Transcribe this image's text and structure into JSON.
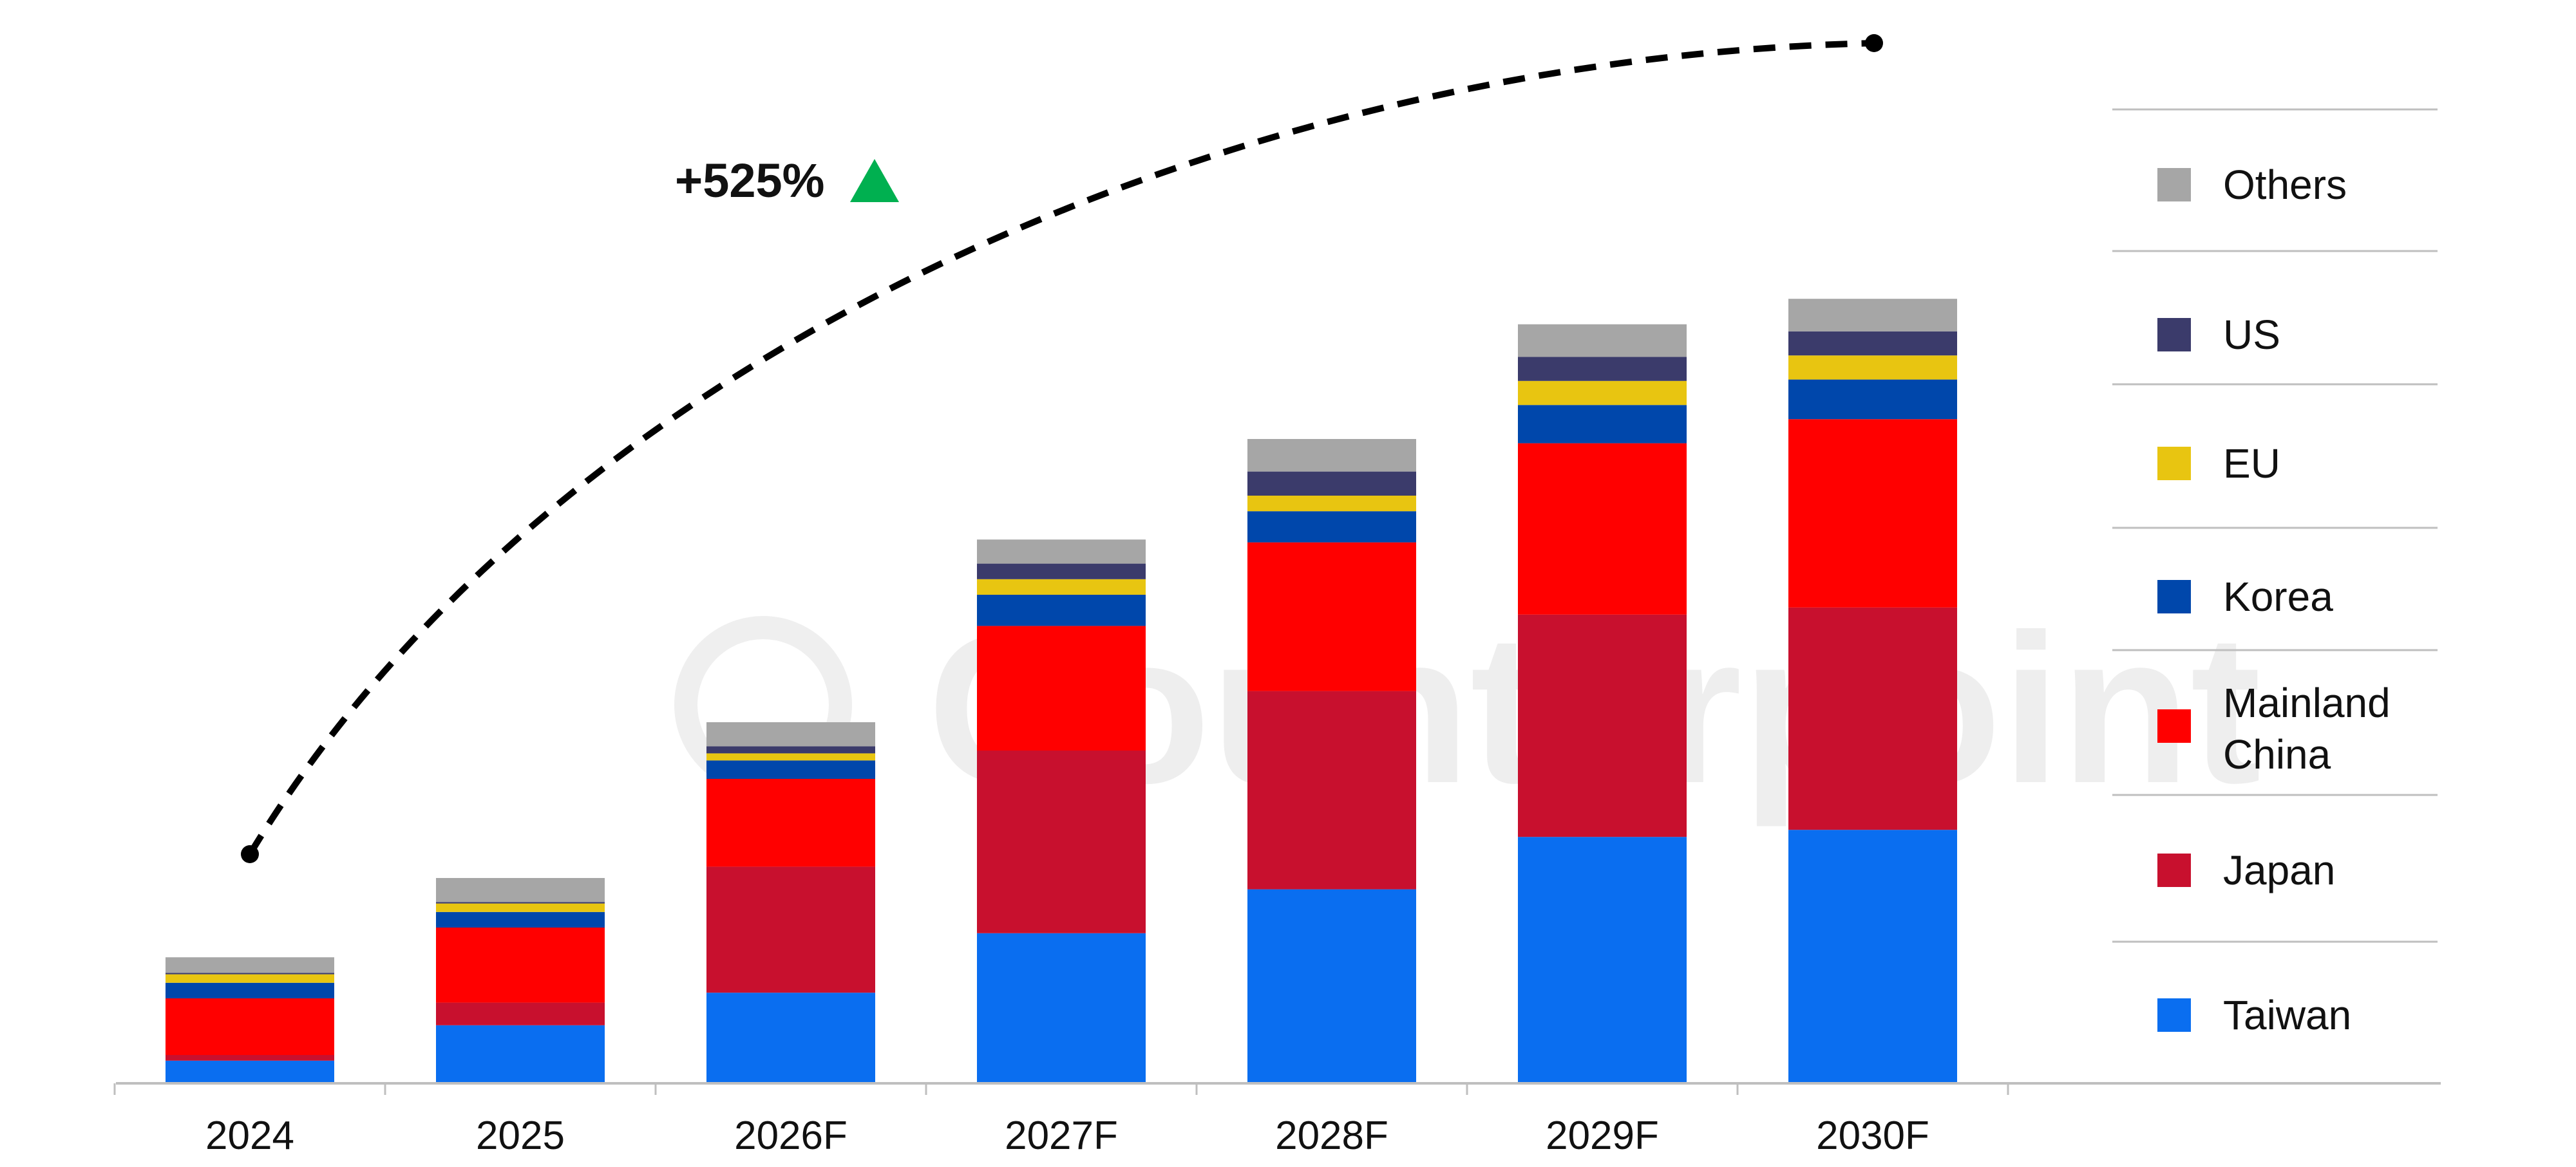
{
  "chart_data": {
    "type": "bar",
    "stacked": true,
    "categories": [
      "2024",
      "2025",
      "2026F",
      "2027F",
      "2028F",
      "2029F",
      "2030F"
    ],
    "series": [
      {
        "name": "Taiwan",
        "color": "#0a6ef0",
        "values": [
          16,
          41,
          64,
          106,
          137,
          174,
          179
        ]
      },
      {
        "name": "Japan",
        "color": "#c8102e",
        "values": [
          4,
          16,
          89,
          129,
          140,
          157,
          157
        ]
      },
      {
        "name": "Mainland China",
        "color": "#ff0000",
        "values": [
          40,
          53,
          62,
          88,
          105,
          121,
          133
        ]
      },
      {
        "name": "Korea",
        "color": "#0047ab",
        "values": [
          11,
          11,
          13,
          22,
          22,
          27,
          28
        ]
      },
      {
        "name": "EU",
        "color": "#e8c511",
        "values": [
          6,
          6,
          5,
          11,
          11,
          17,
          17
        ]
      },
      {
        "name": "US",
        "color": "#3b3b6b",
        "values": [
          1,
          1,
          5,
          11,
          17,
          17,
          17
        ]
      },
      {
        "name": "Others",
        "color": "#a6a6a6",
        "values": [
          11,
          17,
          17,
          17,
          23,
          23,
          23
        ]
      }
    ],
    "ylim": [
      0,
      600
    ],
    "grid": false,
    "legend_position": "right",
    "legend_order": [
      "Others",
      "US",
      "EU",
      "Korea",
      "Mainland China",
      "Japan",
      "Taiwan"
    ],
    "annotation": {
      "text": "+525%",
      "icon": "up-triangle-icon",
      "icon_color": "#00b050",
      "curve_from": "2024",
      "curve_to": "2030F"
    }
  },
  "watermark": {
    "text": "Counterpoint"
  },
  "legend": [
    {
      "label": "Others",
      "color": "#a6a6a6"
    },
    {
      "label": "US",
      "color": "#3b3b6b"
    },
    {
      "label": "EU",
      "color": "#e8c511"
    },
    {
      "label": "Korea",
      "color": "#0047ab"
    },
    {
      "label": "Mainland China",
      "label_lines": [
        "Mainland",
        "China"
      ],
      "color": "#ff0000"
    },
    {
      "label": "Japan",
      "color": "#c8102e"
    },
    {
      "label": "Taiwan",
      "color": "#0a6ef0"
    }
  ]
}
